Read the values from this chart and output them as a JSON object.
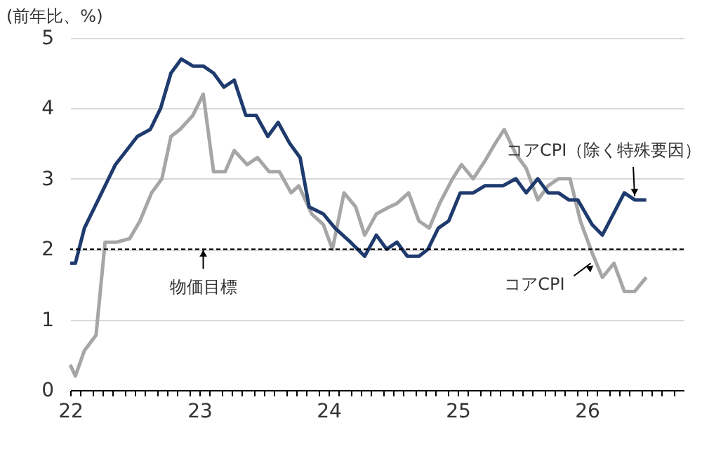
{
  "chart_data": {
    "type": "line",
    "ylabel": "(前年比、%)",
    "xlim": [
      22,
      26.75
    ],
    "xticks": [
      {
        "value": 22,
        "label": "22"
      },
      {
        "value": 22.08,
        "label": null
      },
      {
        "value": 22.17,
        "label": null
      },
      {
        "value": 22.25,
        "label": null
      },
      {
        "value": 22.33,
        "label": null
      },
      {
        "value": 22.42,
        "label": null
      },
      {
        "value": 22.5,
        "label": null
      },
      {
        "value": 22.58,
        "label": null
      },
      {
        "value": 22.67,
        "label": null
      },
      {
        "value": 22.75,
        "label": null
      },
      {
        "value": 22.83,
        "label": null
      },
      {
        "value": 22.92,
        "label": null
      },
      {
        "value": 23,
        "label": "23"
      },
      {
        "value": 23.08,
        "label": null
      },
      {
        "value": 23.17,
        "label": null
      },
      {
        "value": 23.25,
        "label": null
      },
      {
        "value": 23.33,
        "label": null
      },
      {
        "value": 23.42,
        "label": null
      },
      {
        "value": 23.5,
        "label": null
      },
      {
        "value": 23.58,
        "label": null
      },
      {
        "value": 23.67,
        "label": null
      },
      {
        "value": 23.75,
        "label": null
      },
      {
        "value": 23.83,
        "label": null
      },
      {
        "value": 23.92,
        "label": null
      },
      {
        "value": 24,
        "label": "24"
      },
      {
        "value": 24.08,
        "label": null
      },
      {
        "value": 24.17,
        "label": null
      },
      {
        "value": 24.25,
        "label": null
      },
      {
        "value": 24.33,
        "label": null
      },
      {
        "value": 24.42,
        "label": null
      },
      {
        "value": 24.5,
        "label": null
      },
      {
        "value": 24.58,
        "label": null
      },
      {
        "value": 24.67,
        "label": null
      },
      {
        "value": 24.75,
        "label": null
      },
      {
        "value": 24.83,
        "label": null
      },
      {
        "value": 24.92,
        "label": null
      },
      {
        "value": 25,
        "label": "25"
      },
      {
        "value": 25.08,
        "label": null
      },
      {
        "value": 25.17,
        "label": null
      },
      {
        "value": 25.25,
        "label": null
      },
      {
        "value": 25.33,
        "label": null
      },
      {
        "value": 25.42,
        "label": null
      },
      {
        "value": 25.5,
        "label": null
      },
      {
        "value": 25.58,
        "label": null
      },
      {
        "value": 25.67,
        "label": null
      },
      {
        "value": 25.75,
        "label": null
      },
      {
        "value": 25.83,
        "label": null
      },
      {
        "value": 25.92,
        "label": null
      },
      {
        "value": 26,
        "label": "26"
      },
      {
        "value": 26.08,
        "label": null
      },
      {
        "value": 26.17,
        "label": null
      },
      {
        "value": 26.25,
        "label": null
      },
      {
        "value": 26.33,
        "label": null
      },
      {
        "value": 26.42,
        "label": null
      },
      {
        "value": 26.5,
        "label": null
      },
      {
        "value": 26.58,
        "label": null
      },
      {
        "value": 26.67,
        "label": null
      }
    ],
    "ylim": [
      0,
      5
    ],
    "yticks": [
      0,
      1,
      2,
      3,
      4,
      5
    ],
    "grid": "y",
    "series": [
      {
        "color": "#a6a6a6",
        "x": [
          22.0,
          22.04,
          22.11,
          22.2,
          22.27,
          22.36,
          22.46,
          22.54,
          22.63,
          22.71,
          22.78,
          22.85,
          22.95,
          23.03,
          23.11,
          23.2,
          23.27,
          23.37,
          23.45,
          23.54,
          23.62,
          23.71,
          23.77,
          23.87,
          23.96,
          24.03,
          24.12,
          24.21,
          24.28,
          24.37,
          24.47,
          24.53,
          24.62,
          24.7,
          24.78,
          24.86,
          24.96,
          25.03,
          25.12,
          25.21,
          25.29,
          25.36,
          25.45,
          25.53,
          25.62,
          25.7,
          25.78,
          25.87,
          25.95,
          26.04,
          26.12,
          26.21,
          26.29,
          26.37,
          26.46
        ],
        "values": [
          0.36,
          0.2,
          0.56,
          0.78,
          2.1,
          2.1,
          2.15,
          2.4,
          2.8,
          3.0,
          3.6,
          3.7,
          3.9,
          4.2,
          3.1,
          3.1,
          3.4,
          3.2,
          3.3,
          3.1,
          3.1,
          2.8,
          2.9,
          2.5,
          2.35,
          2.0,
          2.8,
          2.6,
          2.2,
          2.5,
          2.6,
          2.65,
          2.8,
          2.4,
          2.3,
          2.65,
          3.0,
          3.2,
          3.0,
          3.25,
          3.5,
          3.7,
          3.35,
          3.15,
          2.7,
          2.9,
          3.0,
          3.0,
          2.4,
          1.95,
          1.6,
          1.8,
          1.4,
          1.4,
          1.6
        ]
      },
      {
        "color": "#1f3b6e",
        "x": [
          22.0,
          22.04,
          22.11,
          22.35,
          22.52,
          22.62,
          22.7,
          22.78,
          22.86,
          22.95,
          23.03,
          23.11,
          23.19,
          23.27,
          23.36,
          23.44,
          23.53,
          23.61,
          23.7,
          23.78,
          23.85,
          23.96,
          24.05,
          24.17,
          24.28,
          24.37,
          24.45,
          24.53,
          24.61,
          24.7,
          24.77,
          24.85,
          24.93,
          25.02,
          25.12,
          25.21,
          25.35,
          25.45,
          25.53,
          25.62,
          25.7,
          25.78,
          25.86,
          25.93,
          26.04,
          26.12,
          26.29,
          26.37,
          26.46
        ],
        "values": [
          1.8,
          1.8,
          2.3,
          3.2,
          3.6,
          3.7,
          4.0,
          4.5,
          4.7,
          4.6,
          4.6,
          4.5,
          4.3,
          4.4,
          3.9,
          3.9,
          3.6,
          3.8,
          3.5,
          3.3,
          2.6,
          2.5,
          2.3,
          2.1,
          1.9,
          2.2,
          2.0,
          2.1,
          1.9,
          1.9,
          2.0,
          2.3,
          2.4,
          2.8,
          2.8,
          2.9,
          2.9,
          3.0,
          2.8,
          3.0,
          2.8,
          2.8,
          2.7,
          2.7,
          2.35,
          2.2,
          2.8,
          2.7,
          2.7
        ]
      }
    ],
    "ref_lines": [
      {
        "axis": "y",
        "value": 2,
        "color": "#000000",
        "line_style": "dashed"
      }
    ],
    "annotations": [
      {
        "text": "物価目標",
        "x": 23.03,
        "y": 2
      },
      {
        "text": "コアCPI（除く特殊要因）",
        "x": 26.37,
        "y": 2.75
      },
      {
        "text": "コアCPI",
        "x": 26.03,
        "y": 1.8
      }
    ]
  }
}
